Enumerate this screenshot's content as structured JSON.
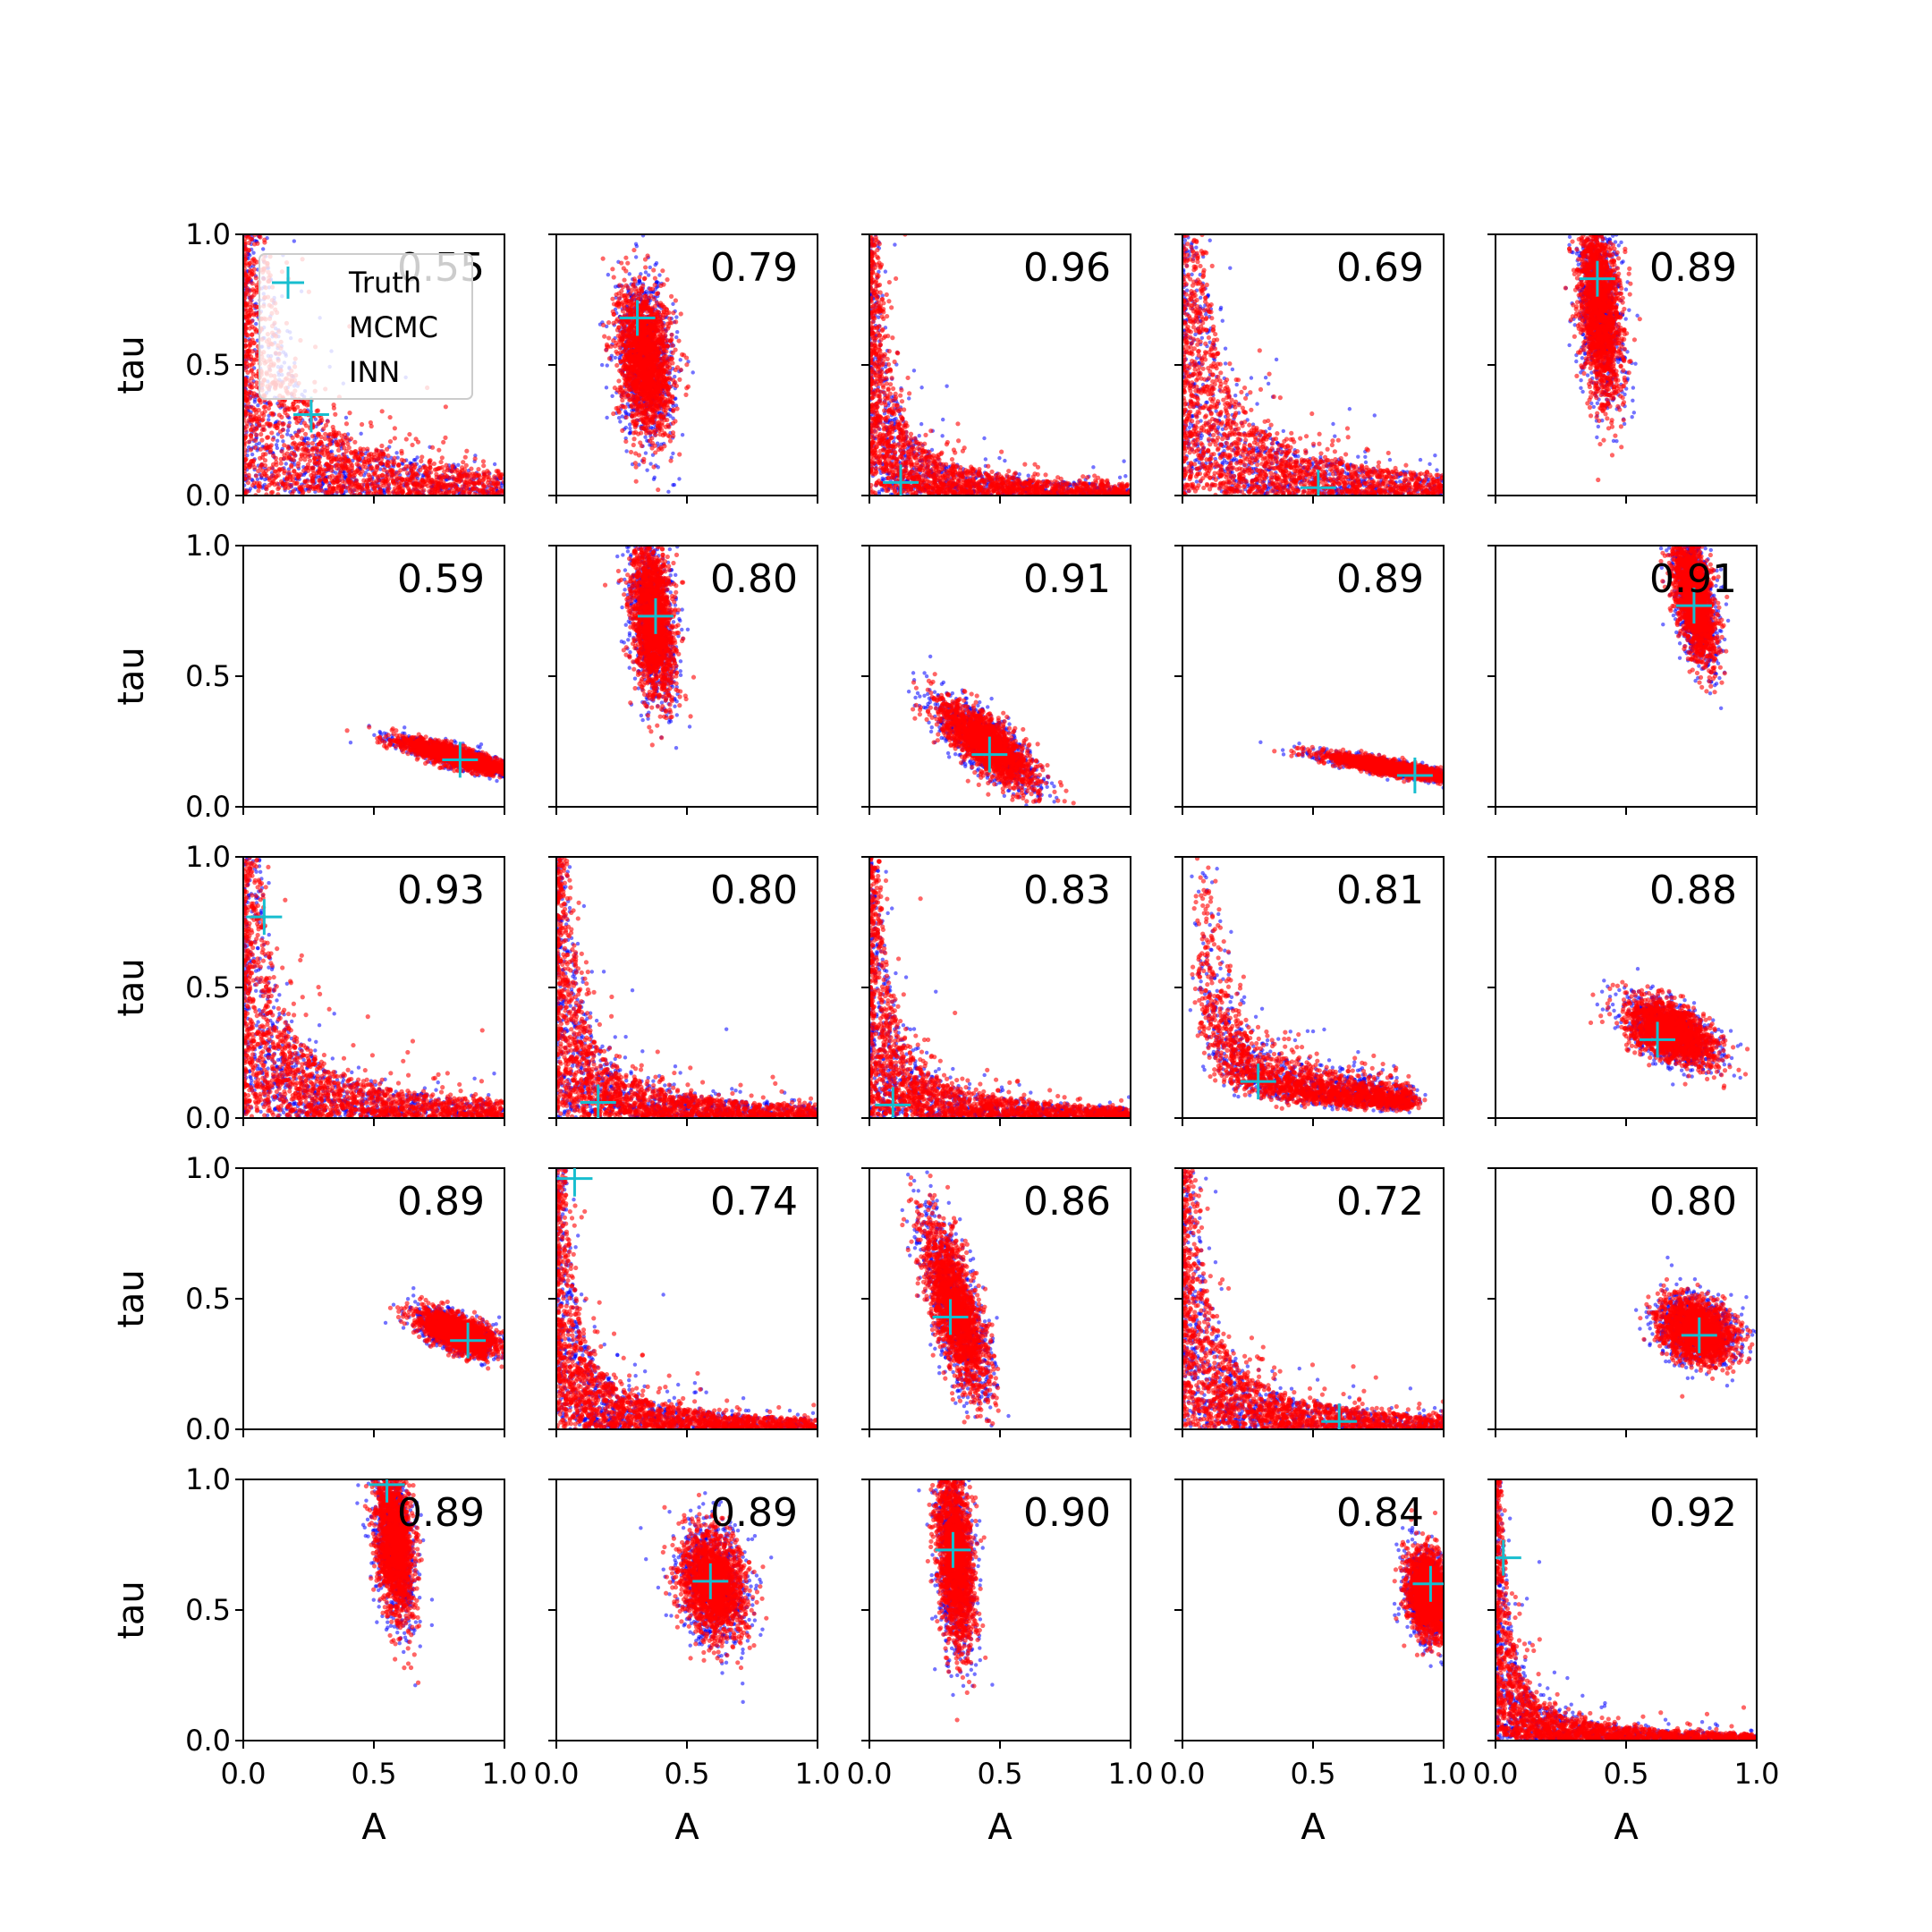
{
  "chart_data": {
    "type": "scatter",
    "rows": 5,
    "cols": 5,
    "xlabel": "A",
    "ylabel": "tau",
    "xlim": [
      0,
      1
    ],
    "ylim": [
      0,
      1
    ],
    "xticks": [
      "0.0",
      "0.5",
      "1.0"
    ],
    "yticks": [
      "0.0",
      "0.5",
      "1.0"
    ],
    "grid": false,
    "legend": {
      "placement": "top-left of first panel",
      "entries": [
        "Truth",
        "MCMC",
        "INN"
      ]
    },
    "colors": {
      "truth": "#17becf",
      "mcmc": "#0000ff",
      "inn": "#ff0000"
    },
    "panels": [
      {
        "label": "0.55",
        "truth": [
          0.26,
          0.31
        ],
        "shape": "hyperbola",
        "k": 0.07
      },
      {
        "label": "0.79",
        "truth": [
          0.31,
          0.68
        ],
        "shape": "blob",
        "cx": 0.34,
        "cy": 0.52,
        "sx": 0.05,
        "sy": 0.14,
        "rho": -0.2
      },
      {
        "label": "0.96",
        "truth": [
          0.12,
          0.05
        ],
        "shape": "hyperbola",
        "k": 0.03
      },
      {
        "label": "0.69",
        "truth": [
          0.52,
          0.03
        ],
        "shape": "hyperbola",
        "k": 0.06
      },
      {
        "label": "0.89",
        "truth": [
          0.39,
          0.83
        ],
        "shape": "blob",
        "cx": 0.4,
        "cy": 0.72,
        "sx": 0.04,
        "sy": 0.17,
        "rho": -0.3
      },
      {
        "label": "0.59",
        "truth": [
          0.83,
          0.18
        ],
        "shape": "blob",
        "cx": 0.82,
        "cy": 0.19,
        "sx": 0.11,
        "sy": 0.035,
        "rho": -0.85
      },
      {
        "label": "0.80",
        "truth": [
          0.38,
          0.73
        ],
        "shape": "blob",
        "cx": 0.37,
        "cy": 0.72,
        "sx": 0.04,
        "sy": 0.15,
        "rho": -0.3
      },
      {
        "label": "0.91",
        "truth": [
          0.46,
          0.2
        ],
        "shape": "blob",
        "cx": 0.45,
        "cy": 0.24,
        "sx": 0.09,
        "sy": 0.08,
        "rho": -0.75
      },
      {
        "label": "0.89",
        "truth": [
          0.89,
          0.12
        ],
        "shape": "blob",
        "cx": 0.8,
        "cy": 0.15,
        "sx": 0.12,
        "sy": 0.025,
        "rho": -0.85
      },
      {
        "label": "0.91",
        "truth": [
          0.76,
          0.77
        ],
        "shape": "blob",
        "cx": 0.76,
        "cy": 0.8,
        "sx": 0.04,
        "sy": 0.12,
        "rho": -0.5
      },
      {
        "label": "0.93",
        "truth": [
          0.08,
          0.77
        ],
        "shape": "hyperbola",
        "k": 0.05
      },
      {
        "label": "0.80",
        "truth": [
          0.16,
          0.06
        ],
        "shape": "hyperbola",
        "k": 0.035
      },
      {
        "label": "0.83",
        "truth": [
          0.09,
          0.05
        ],
        "shape": "hyperbola",
        "k": 0.03
      },
      {
        "label": "0.81",
        "truth": [
          0.29,
          0.14
        ],
        "shape": "curve",
        "k": 0.045
      },
      {
        "label": "0.88",
        "truth": [
          0.62,
          0.3
        ],
        "shape": "blob",
        "cx": 0.67,
        "cy": 0.33,
        "sx": 0.08,
        "sy": 0.06,
        "rho": -0.5
      },
      {
        "label": "0.89",
        "truth": [
          0.86,
          0.34
        ],
        "shape": "blob",
        "cx": 0.82,
        "cy": 0.37,
        "sx": 0.07,
        "sy": 0.04,
        "rho": -0.6
      },
      {
        "label": "0.74",
        "truth": [
          0.07,
          0.96
        ],
        "shape": "hyperbola",
        "k": 0.03
      },
      {
        "label": "0.86",
        "truth": [
          0.31,
          0.43
        ],
        "shape": "blob",
        "cx": 0.33,
        "cy": 0.46,
        "sx": 0.06,
        "sy": 0.16,
        "rho": -0.7
      },
      {
        "label": "0.72",
        "truth": [
          0.6,
          0.03
        ],
        "shape": "hyperbola",
        "k": 0.04
      },
      {
        "label": "0.80",
        "truth": [
          0.78,
          0.36
        ],
        "shape": "blob",
        "cx": 0.77,
        "cy": 0.38,
        "sx": 0.07,
        "sy": 0.06,
        "rho": -0.3
      },
      {
        "label": "0.89",
        "truth": [
          0.55,
          0.98
        ],
        "shape": "blob",
        "cx": 0.58,
        "cy": 0.76,
        "sx": 0.035,
        "sy": 0.14,
        "rho": -0.3
      },
      {
        "label": "0.89",
        "truth": [
          0.59,
          0.61
        ],
        "shape": "blob",
        "cx": 0.6,
        "cy": 0.6,
        "sx": 0.06,
        "sy": 0.1,
        "rho": -0.2
      },
      {
        "label": "0.90",
        "truth": [
          0.32,
          0.73
        ],
        "shape": "blob",
        "cx": 0.33,
        "cy": 0.7,
        "sx": 0.035,
        "sy": 0.17,
        "rho": -0.3
      },
      {
        "label": "0.84",
        "truth": [
          0.95,
          0.6
        ],
        "shape": "blob",
        "cx": 0.94,
        "cy": 0.56,
        "sx": 0.04,
        "sy": 0.08,
        "rho": -0.2
      },
      {
        "label": "0.92",
        "truth": [
          0.03,
          0.7
        ],
        "shape": "hyperbola",
        "k": 0.02
      }
    ]
  }
}
